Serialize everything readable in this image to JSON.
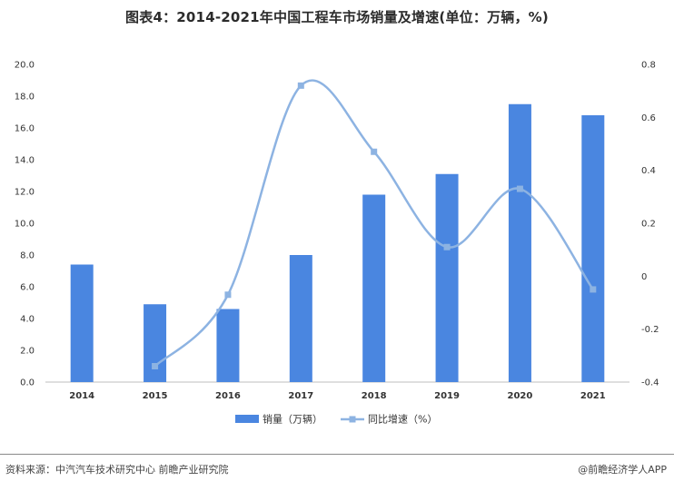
{
  "header": {
    "title": "图表4：2014-2021年中国工程车市场销量及增速(单位：万辆，%)"
  },
  "footer": {
    "source": "资料来源：中汽汽车技术研究中心 前瞻产业研究院",
    "brand": "@前瞻经济学人APP"
  },
  "colors": {
    "bar": "#4A86E0",
    "line": "#8DB3E2",
    "marker": "#8DB3E2",
    "axis": "#bfbfbf"
  },
  "chart_data": {
    "type": "bar",
    "categories": [
      "2014",
      "2015",
      "2016",
      "2017",
      "2018",
      "2019",
      "2020",
      "2021"
    ],
    "series": [
      {
        "name": "销量（万辆）",
        "type": "bar",
        "axis": "left",
        "values": [
          7.4,
          4.9,
          4.6,
          8.0,
          11.8,
          13.1,
          17.5,
          16.8
        ]
      },
      {
        "name": "同比增速（%）",
        "type": "line",
        "axis": "right",
        "values": [
          null,
          -0.34,
          -0.07,
          0.72,
          0.47,
          0.11,
          0.33,
          -0.05
        ]
      }
    ],
    "y_left": {
      "lim": [
        0,
        20
      ],
      "ticks": [
        "0.0",
        "2.0",
        "4.0",
        "6.0",
        "8.0",
        "10.0",
        "12.0",
        "14.0",
        "16.0",
        "18.0",
        "20.0"
      ]
    },
    "y_right": {
      "lim": [
        -0.4,
        0.8
      ],
      "ticks": [
        "-0.4",
        "-0.2",
        "0",
        "0.2",
        "0.4",
        "0.6",
        "0.8"
      ]
    },
    "legend_position": "bottom-center",
    "grid": false
  }
}
